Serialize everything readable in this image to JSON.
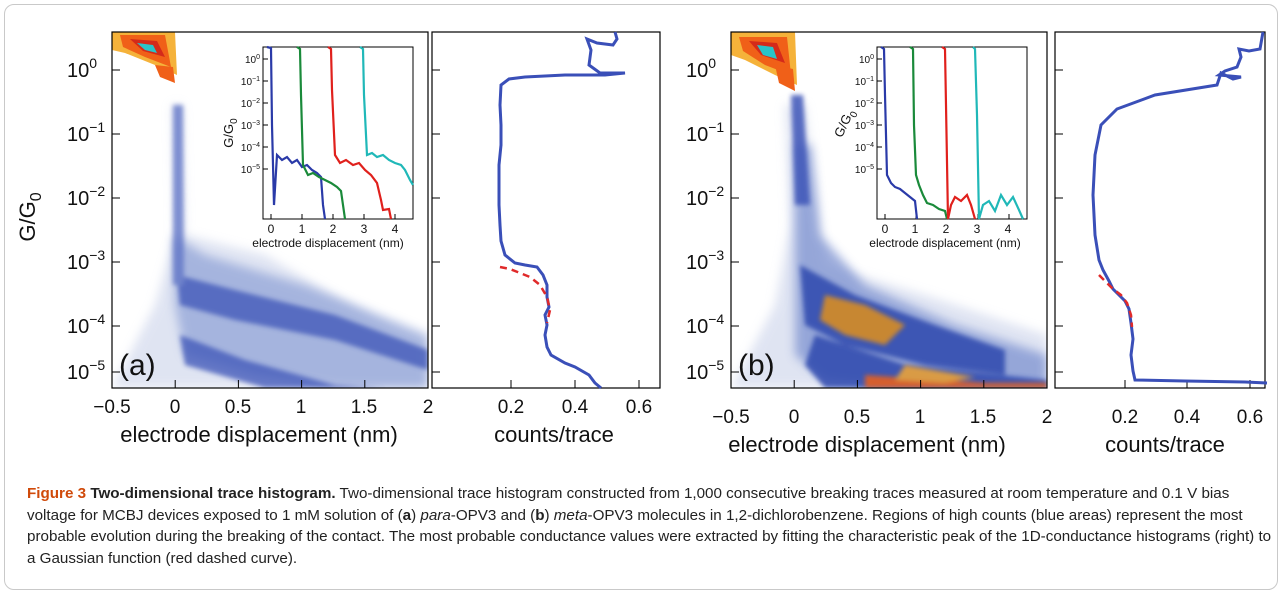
{
  "figure": {
    "panels": [
      {
        "tag": "(a)",
        "main": {
          "ylabel": "G/G",
          "ylabel_sub": "0",
          "xlabel": "electrode displacement (nm)",
          "x_ticks": [
            "−0.5",
            "0",
            "0.5",
            "1",
            "1.5",
            "2"
          ],
          "y_ticks": [
            "10",
            "10",
            "10",
            "10",
            "10",
            "10"
          ],
          "y_exps": [
            "0",
            "−1",
            "−2",
            "−3",
            "−4",
            "−5"
          ]
        },
        "inset": {
          "ylabel": "G/G",
          "ylabel_sub": "0",
          "xlabel": "electrode displacement (nm)",
          "x_ticks": [
            "0",
            "1",
            "2",
            "3",
            "4"
          ],
          "y_ticks": [
            "10",
            "10",
            "10",
            "10",
            "10",
            "10"
          ],
          "y_exps": [
            "0",
            "−1",
            "−2",
            "−3",
            "−4",
            "−5"
          ]
        },
        "hist": {
          "xlabel": "counts/trace",
          "x_ticks": [
            "0.2",
            "0.4",
            "0.6"
          ]
        }
      },
      {
        "tag": "(b)",
        "main": {
          "ylabel": "G/G",
          "ylabel_sub": "0",
          "xlabel": "electrode displacement (nm)",
          "x_ticks": [
            "−0.5",
            "0",
            "0.5",
            "1",
            "1.5",
            "2"
          ],
          "y_ticks": [
            "10",
            "10",
            "10",
            "10",
            "10",
            "10"
          ],
          "y_exps": [
            "0",
            "−1",
            "−2",
            "−3",
            "−4",
            "−5"
          ]
        },
        "inset": {
          "ylabel": "G/G",
          "ylabel_sub": "0",
          "xlabel": "electrode displacement (nm)",
          "x_ticks": [
            "0",
            "1",
            "2",
            "3",
            "4"
          ],
          "y_ticks": [
            "10",
            "10",
            "10",
            "10",
            "10",
            "10"
          ],
          "y_exps": [
            "0",
            "−1",
            "−2",
            "−3",
            "−4",
            "−5"
          ]
        },
        "hist": {
          "xlabel": "counts/trace",
          "x_ticks": [
            "0.2",
            "0.4",
            "0.6"
          ]
        }
      }
    ]
  },
  "caption": {
    "label": "Figure 3",
    "title": "Two-dimensional trace histogram.",
    "p1": " Two-dimensional trace histogram constructed from 1,000 consecutive breaking traces measured at room temperature and 0.1 V bias voltage for MCBJ devices exposed to 1 mM solution of (",
    "a": "a",
    "p2": ") ",
    "para": "para",
    "p3": "-OPV3 and (",
    "b": "b",
    "p4": ") ",
    "meta": "meta",
    "p5": "-OPV3 molecules in 1,2-dichlorobenzene. Regions of high counts (blue areas) represent the most probable evolution during the breaking of the contact. The most probable conductance values were extracted by fitting the characteristic peak of the 1D-conductance histograms (right) to a Gaussian function (red dashed curve)."
  },
  "colors": {
    "trace_blue": "#2a3aa8",
    "trace_green": "#1a8a3a",
    "trace_red": "#e0201c",
    "trace_cyan": "#20b8b8",
    "hist_line": "#3a4fb8",
    "gauss_fit": "#e02a2a",
    "density_hot": "#f06018",
    "caption_label": "#d04a0a"
  }
}
